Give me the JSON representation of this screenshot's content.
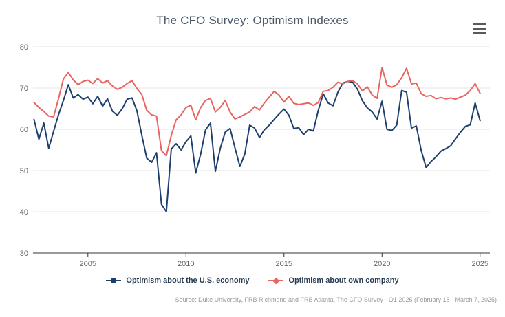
{
  "chart": {
    "title": "The CFO Survey: Optimism Indexes"
  },
  "menu": {
    "icon": "hamburger-menu-icon"
  },
  "credits": {
    "text": "Source: Duke University, FRB Richmond and FRB Atlanta, The CFO Survey - Q1 2025 (February 18 - March 7, 2025)"
  },
  "colors": {
    "economy_line": "#1e3f6e",
    "company_line": "#e8645f",
    "gridline": "#e6e6e6",
    "axis_line": "#333333",
    "tick_label": "#666666",
    "title_text": "#4a5a68",
    "legend_text": "#263b50",
    "credits_text": "#9b9b9b"
  },
  "chart_data": {
    "type": "line",
    "title": "The CFO Survey: Optimism Indexes",
    "xlabel": "",
    "ylabel": "",
    "ylim": [
      30,
      80
    ],
    "yticks": [
      30,
      40,
      50,
      60,
      70,
      80
    ],
    "xticks": [
      2005,
      2010,
      2015,
      2020,
      2025
    ],
    "grid": "horizontal",
    "legend_position": "bottom-center",
    "quarters": [
      "2002 Q2",
      "2002 Q3",
      "2002 Q4",
      "2003 Q1",
      "2003 Q2",
      "2003 Q3",
      "2003 Q4",
      "2004 Q1",
      "2004 Q2",
      "2004 Q3",
      "2004 Q4",
      "2005 Q1",
      "2005 Q2",
      "2005 Q3",
      "2005 Q4",
      "2006 Q1",
      "2006 Q2",
      "2006 Q3",
      "2006 Q4",
      "2007 Q1",
      "2007 Q2",
      "2007 Q3",
      "2007 Q4",
      "2008 Q1",
      "2008 Q2",
      "2008 Q3",
      "2008 Q4",
      "2009 Q1",
      "2009 Q2",
      "2009 Q3",
      "2009 Q4",
      "2010 Q1",
      "2010 Q2",
      "2010 Q3",
      "2010 Q4",
      "2011 Q1",
      "2011 Q2",
      "2011 Q3",
      "2011 Q4",
      "2012 Q1",
      "2012 Q2",
      "2012 Q3",
      "2012 Q4",
      "2013 Q1",
      "2013 Q2",
      "2013 Q3",
      "2013 Q4",
      "2014 Q1",
      "2014 Q2",
      "2014 Q3",
      "2014 Q4",
      "2015 Q1",
      "2015 Q2",
      "2015 Q3",
      "2015 Q4",
      "2016 Q1",
      "2016 Q2",
      "2016 Q3",
      "2016 Q4",
      "2017 Q1",
      "2017 Q2",
      "2017 Q3",
      "2017 Q4",
      "2018 Q1",
      "2018 Q2",
      "2018 Q3",
      "2018 Q4",
      "2019 Q1",
      "2019 Q2",
      "2019 Q3",
      "2019 Q4",
      "2020 Q1",
      "2020 Q2",
      "2020 Q3",
      "2020 Q4",
      "2021 Q1",
      "2021 Q2",
      "2021 Q3",
      "2021 Q4",
      "2022 Q1",
      "2022 Q2",
      "2022 Q3",
      "2022 Q4",
      "2023 Q1",
      "2023 Q2",
      "2023 Q3",
      "2023 Q4",
      "2024 Q1",
      "2024 Q2",
      "2024 Q3",
      "2024 Q4",
      "2025 Q1"
    ],
    "series": [
      {
        "name": "Optimism about the U.S. economy",
        "color": "#1e3f6e",
        "marker": "circle",
        "values": [
          62.4,
          57.6,
          61.5,
          55.4,
          59.5,
          63.5,
          67.0,
          70.8,
          67.6,
          68.4,
          67.3,
          67.8,
          66.2,
          68.0,
          65.6,
          67.4,
          64.4,
          63.4,
          65.0,
          67.3,
          67.6,
          64.5,
          58.5,
          53.0,
          52.0,
          54.3,
          41.8,
          40.0,
          55.2,
          56.5,
          55.0,
          57.0,
          58.4,
          49.4,
          54.0,
          59.9,
          61.5,
          49.8,
          55.4,
          59.3,
          60.2,
          55.5,
          51.0,
          54.0,
          61.0,
          60.3,
          58.0,
          59.9,
          61.0,
          62.4,
          63.7,
          64.9,
          63.4,
          60.2,
          60.4,
          58.7,
          60.0,
          59.6,
          64.6,
          68.6,
          66.4,
          65.7,
          69.0,
          71.2,
          71.6,
          71.4,
          69.7,
          66.9,
          65.2,
          64.2,
          62.5,
          66.8,
          60.0,
          59.7,
          61.0,
          69.4,
          69.0,
          60.3,
          60.8,
          54.8,
          50.7,
          52.2,
          53.3,
          54.7,
          55.3,
          56.0,
          57.7,
          59.3,
          60.7,
          61.1,
          66.4,
          62.1
        ]
      },
      {
        "name": "Optimism about own company",
        "color": "#e8645f",
        "marker": "diamond",
        "values": [
          66.5,
          65.3,
          64.3,
          63.2,
          63.0,
          67.4,
          72.2,
          73.8,
          72.0,
          70.8,
          71.6,
          71.9,
          71.1,
          72.3,
          71.2,
          71.8,
          70.5,
          69.7,
          70.2,
          71.1,
          71.8,
          69.9,
          68.4,
          64.6,
          63.5,
          63.2,
          54.8,
          53.6,
          58.5,
          62.3,
          63.5,
          65.3,
          65.8,
          62.3,
          65.3,
          67.0,
          67.5,
          64.2,
          65.3,
          67.0,
          64.2,
          62.5,
          63.0,
          63.6,
          64.2,
          65.5,
          64.7,
          66.4,
          67.8,
          69.2,
          68.3,
          66.6,
          68.0,
          66.3,
          66.0,
          66.2,
          66.4,
          65.8,
          66.5,
          69.2,
          69.4,
          70.2,
          71.4,
          71.0,
          71.6,
          71.8,
          71.0,
          69.3,
          70.3,
          68.3,
          67.5,
          75.0,
          70.7,
          70.2,
          70.8,
          72.5,
          74.8,
          71.0,
          71.2,
          68.6,
          68.0,
          68.2,
          67.4,
          67.7,
          67.4,
          67.6,
          67.3,
          67.8,
          68.3,
          69.4,
          71.1,
          68.7
        ]
      }
    ]
  }
}
